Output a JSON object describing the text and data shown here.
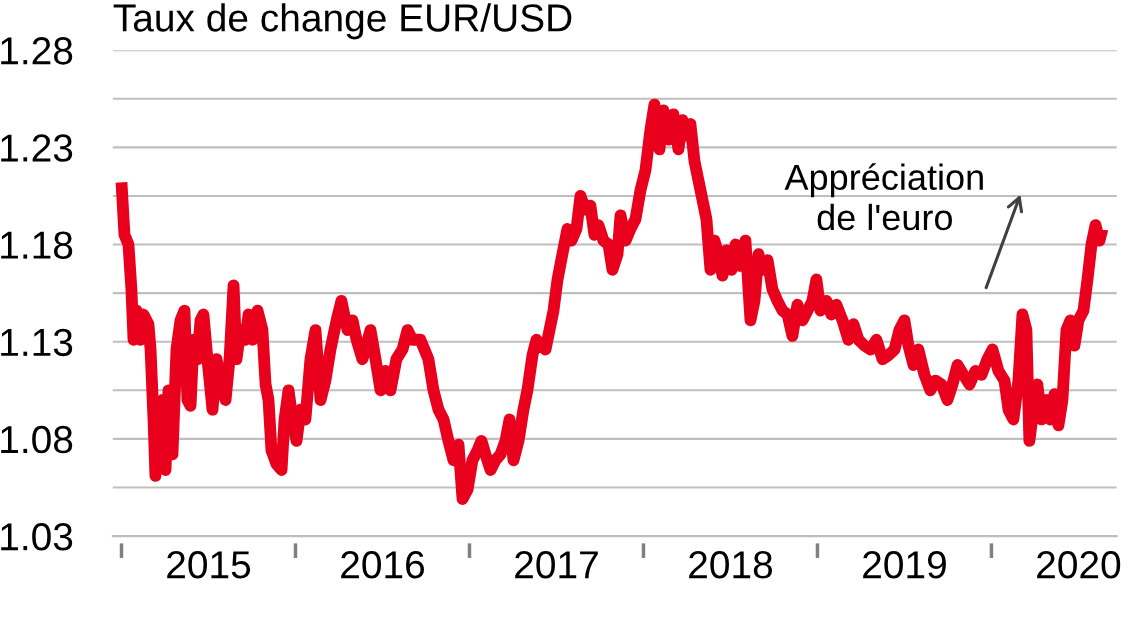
{
  "chart_data": {
    "type": "line",
    "title": "Taux de change EUR/USD",
    "annotations": [
      "Appréciation\nde l'euro"
    ],
    "xlim": [
      2014.95,
      2020.72
    ],
    "xticks": [
      {
        "value": 2015,
        "label": null
      },
      {
        "value": 2015.5,
        "label": "2015"
      },
      {
        "value": 2016,
        "label": null
      },
      {
        "value": 2016.5,
        "label": "2016"
      },
      {
        "value": 2017,
        "label": null
      },
      {
        "value": 2017.5,
        "label": "2017"
      },
      {
        "value": 2018,
        "label": null
      },
      {
        "value": 2018.5,
        "label": "2018"
      },
      {
        "value": 2019,
        "label": null
      },
      {
        "value": 2019.5,
        "label": "2019"
      },
      {
        "value": 2020,
        "label": null
      },
      {
        "value": 2020.5,
        "label": "2020"
      }
    ],
    "ylim": [
      1.03,
      1.28
    ],
    "yticks": [
      1.03,
      {
        "value": 1.055,
        "label": null
      },
      1.08,
      {
        "value": 1.105,
        "label": null
      },
      1.13,
      {
        "value": 1.155,
        "label": null
      },
      1.18,
      {
        "value": 1.205,
        "label": null
      },
      1.23,
      {
        "value": 1.255,
        "label": null
      },
      1.28
    ],
    "grid": "y",
    "marker": "none",
    "line_style": "solid",
    "series": [
      {
        "color": "#e8001c",
        "x": [
          2015.0,
          2015.017,
          2015.04,
          2015.057,
          2015.069,
          2015.086,
          2015.109,
          2015.126,
          2015.155,
          2015.167,
          2015.184,
          2015.195,
          2015.213,
          2015.236,
          2015.253,
          2015.27,
          2015.293,
          2015.316,
          2015.339,
          2015.362,
          2015.379,
          2015.397,
          2015.414,
          2015.437,
          2015.454,
          2015.471,
          2015.494,
          2015.523,
          2015.546,
          2015.569,
          2015.598,
          2015.621,
          2015.644,
          2015.661,
          2015.684,
          2015.713,
          2015.73,
          2015.753,
          2015.782,
          2015.81,
          2015.828,
          2015.845,
          2015.862,
          2015.891,
          2015.92,
          2015.937,
          2015.96,
          2015.983,
          2016.006,
          2016.029,
          2016.057,
          2016.086,
          2016.115,
          2016.144,
          2016.172,
          2016.201,
          2016.236,
          2016.264,
          2016.299,
          2016.328,
          2016.351,
          2016.385,
          2016.431,
          2016.46,
          2016.489,
          2016.517,
          2016.546,
          2016.58,
          2016.615,
          2016.644,
          2016.672,
          2016.718,
          2016.764,
          2016.793,
          2016.822,
          2016.851,
          2016.879,
          2016.908,
          2016.937,
          2016.96,
          2016.989,
          2017.017,
          2017.046,
          2017.069,
          2017.092,
          2017.121,
          2017.149,
          2017.178,
          2017.207,
          2017.23,
          2017.253,
          2017.282,
          2017.31,
          2017.333,
          2017.362,
          2017.385,
          2017.408,
          2017.437,
          2017.46,
          2017.483,
          2017.506,
          2017.534,
          2017.563,
          2017.586,
          2017.615,
          2017.638,
          2017.667,
          2017.695,
          2017.718,
          2017.741,
          2017.77,
          2017.799,
          2017.822,
          2017.851,
          2017.868,
          2017.897,
          2017.925,
          2017.954,
          2017.983,
          2018.011,
          2018.04,
          2018.063,
          2018.092,
          2018.115,
          2018.144,
          2018.172,
          2018.201,
          2018.224,
          2018.247,
          2018.27,
          2018.293,
          2018.316,
          2018.339,
          2018.362,
          2018.385,
          2018.408,
          2018.431,
          2018.454,
          2018.477,
          2018.506,
          2018.529,
          2018.557,
          2018.586,
          2018.615,
          2018.638,
          2018.661,
          2018.684,
          2018.713,
          2018.741,
          2018.77,
          2018.799,
          2018.828,
          2018.856,
          2018.885,
          2018.914,
          2018.943,
          2018.971,
          2018.994,
          2019.017,
          2019.052,
          2019.08,
          2019.109,
          2019.144,
          2019.178,
          2019.207,
          2019.236,
          2019.27,
          2019.305,
          2019.339,
          2019.374,
          2019.408,
          2019.443,
          2019.471,
          2019.5,
          2019.523,
          2019.552,
          2019.58,
          2019.615,
          2019.649,
          2019.678,
          2019.713,
          2019.747,
          2019.776,
          2019.805,
          2019.839,
          2019.874,
          2019.908,
          2019.943,
          2019.977,
          2020.006,
          2020.04,
          2020.075,
          2020.098,
          2020.126,
          2020.155,
          2020.178,
          2020.201,
          2020.218,
          2020.241,
          2020.264,
          2020.287,
          2020.316,
          2020.339,
          2020.362,
          2020.385,
          2020.408,
          2020.431,
          2020.454,
          2020.477,
          2020.5,
          2020.529,
          2020.552,
          2020.575,
          2020.598,
          2020.621,
          2020.638
        ],
        "values": [
          1.212,
          1.185,
          1.18,
          1.157,
          1.131,
          1.146,
          1.131,
          1.144,
          1.139,
          1.126,
          1.09,
          1.061,
          1.079,
          1.1,
          1.064,
          1.105,
          1.072,
          1.126,
          1.141,
          1.146,
          1.1,
          1.097,
          1.131,
          1.121,
          1.141,
          1.144,
          1.121,
          1.095,
          1.121,
          1.11,
          1.1,
          1.121,
          1.159,
          1.121,
          1.136,
          1.131,
          1.144,
          1.131,
          1.146,
          1.136,
          1.108,
          1.1,
          1.074,
          1.067,
          1.064,
          1.09,
          1.105,
          1.09,
          1.079,
          1.095,
          1.09,
          1.121,
          1.136,
          1.1,
          1.11,
          1.126,
          1.141,
          1.151,
          1.136,
          1.141,
          1.131,
          1.121,
          1.136,
          1.121,
          1.105,
          1.115,
          1.105,
          1.121,
          1.126,
          1.136,
          1.131,
          1.131,
          1.121,
          1.105,
          1.095,
          1.09,
          1.079,
          1.069,
          1.077,
          1.049,
          1.054,
          1.069,
          1.074,
          1.079,
          1.072,
          1.064,
          1.069,
          1.072,
          1.079,
          1.09,
          1.069,
          1.079,
          1.095,
          1.105,
          1.123,
          1.131,
          1.128,
          1.126,
          1.136,
          1.146,
          1.162,
          1.175,
          1.188,
          1.182,
          1.188,
          1.205,
          1.198,
          1.2,
          1.185,
          1.19,
          1.182,
          1.18,
          1.167,
          1.175,
          1.195,
          1.182,
          1.188,
          1.193,
          1.208,
          1.218,
          1.239,
          1.252,
          1.229,
          1.249,
          1.234,
          1.247,
          1.229,
          1.244,
          1.236,
          1.242,
          1.223,
          1.213,
          1.203,
          1.193,
          1.167,
          1.182,
          1.175,
          1.164,
          1.177,
          1.167,
          1.18,
          1.169,
          1.182,
          1.141,
          1.151,
          1.175,
          1.167,
          1.172,
          1.157,
          1.151,
          1.146,
          1.144,
          1.133,
          1.149,
          1.141,
          1.146,
          1.151,
          1.162,
          1.146,
          1.151,
          1.144,
          1.149,
          1.141,
          1.131,
          1.139,
          1.131,
          1.128,
          1.126,
          1.131,
          1.121,
          1.123,
          1.126,
          1.136,
          1.141,
          1.128,
          1.118,
          1.126,
          1.113,
          1.105,
          1.11,
          1.108,
          1.1,
          1.108,
          1.118,
          1.113,
          1.108,
          1.115,
          1.113,
          1.121,
          1.126,
          1.115,
          1.11,
          1.095,
          1.09,
          1.11,
          1.144,
          1.136,
          1.079,
          1.095,
          1.108,
          1.09,
          1.1,
          1.09,
          1.103,
          1.087,
          1.1,
          1.136,
          1.141,
          1.128,
          1.141,
          1.146,
          1.162,
          1.18,
          1.19,
          1.182,
          1.188
        ]
      }
    ]
  }
}
